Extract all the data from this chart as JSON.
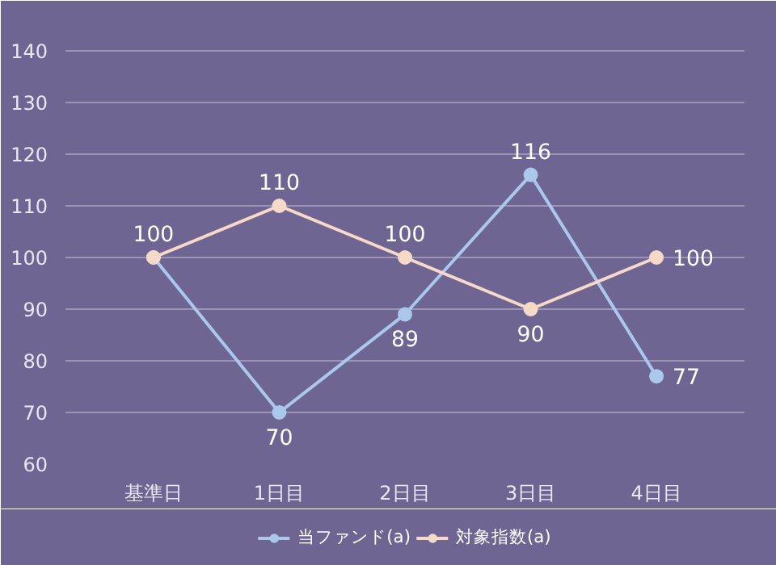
{
  "chart_data": {
    "type": "line",
    "categories": [
      "基準日",
      "1日目",
      "2日目",
      "3日目",
      "4日目"
    ],
    "series": [
      {
        "name": "当ファンド(a)",
        "color": "#a9c8ec",
        "values": [
          100,
          70,
          89,
          116,
          77
        ],
        "value_labels": [
          "100",
          "70",
          "89",
          "116",
          "77"
        ]
      },
      {
        "name": "対象指数(a)",
        "color": "#f7d9c8",
        "values": [
          100,
          110,
          100,
          90,
          100
        ],
        "value_labels": [
          null,
          "110",
          "100",
          "90",
          "100"
        ]
      }
    ],
    "ylim": [
      60,
      145
    ],
    "yticks": [
      60,
      70,
      80,
      90,
      100,
      110,
      120,
      130,
      140
    ],
    "grid": "y",
    "legend": "bottom",
    "marker": "circle",
    "line_style": "solid"
  }
}
